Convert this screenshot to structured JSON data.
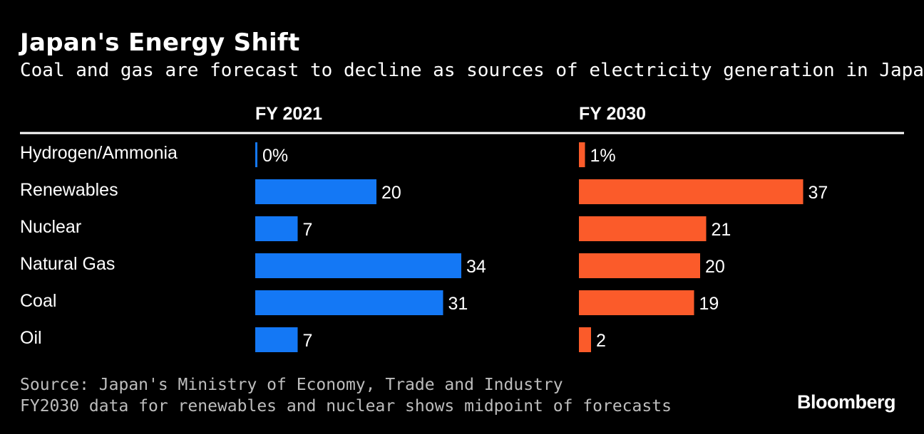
{
  "header": {
    "title": "Japan's Energy Shift",
    "subtitle": "Coal and gas are forecast to decline as sources of electricity generation in Japan"
  },
  "footer": {
    "source": "Source: Japan's Ministry of Economy, Trade and Industry",
    "note": "FY2030 data for renewables and nuclear shows midpoint of forecasts",
    "brand": "Bloomberg"
  },
  "colors": {
    "background": "#000000",
    "fy2021": "#1478f5",
    "fy2030": "#fb5b2a",
    "text": "#ffffff",
    "muted": "#bdbdbd"
  },
  "chart_data": {
    "type": "bar",
    "orientation": "horizontal",
    "categories": [
      "Hydrogen/Ammonia",
      "Renewables",
      "Nuclear",
      "Natural Gas",
      "Coal",
      "Oil"
    ],
    "series": [
      {
        "name": "FY 2021",
        "values": [
          0,
          20,
          7,
          34,
          31,
          7
        ],
        "labels": [
          "0%",
          "20",
          "7",
          "34",
          "31",
          "7"
        ]
      },
      {
        "name": "FY 2030",
        "values": [
          1,
          37,
          21,
          20,
          19,
          2
        ],
        "labels": [
          "1%",
          "37",
          "21",
          "20",
          "19",
          "2"
        ]
      }
    ],
    "unit": "%",
    "xlim": [
      0,
      40
    ]
  }
}
